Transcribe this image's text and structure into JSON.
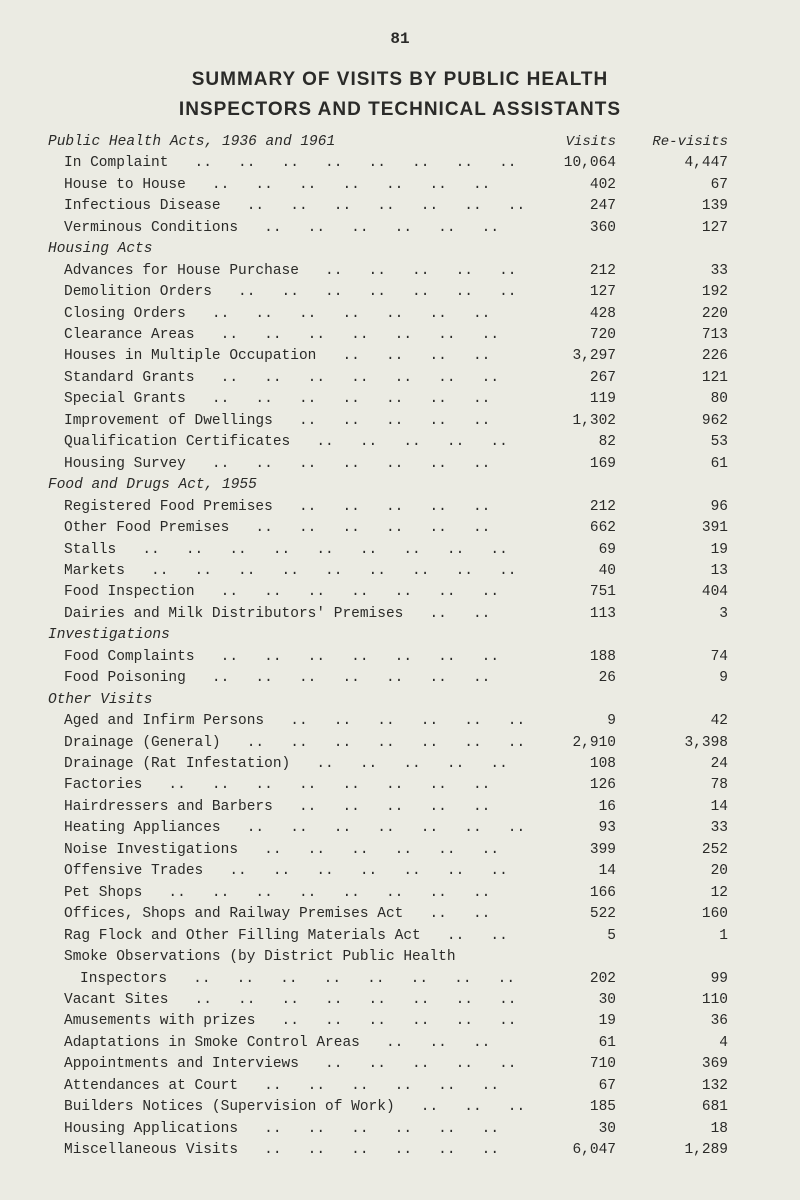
{
  "page_number": "81",
  "title_line1": "SUMMARY OF VISITS BY PUBLIC HEALTH",
  "title_line2": "INSPECTORS AND TECHNICAL ASSISTANTS",
  "col_headers": {
    "visits": "Visits",
    "revisits": "Re-visits"
  },
  "sections": [
    {
      "header": "Public Health Acts, 1936 and 1961",
      "is_header_row": true,
      "rows": [
        {
          "label": "In Complaint",
          "visits": "10,064",
          "revisits": "4,447"
        },
        {
          "label": "House to House",
          "visits": "402",
          "revisits": "67"
        },
        {
          "label": "Infectious Disease",
          "visits": "247",
          "revisits": "139"
        },
        {
          "label": "Verminous Conditions",
          "visits": "360",
          "revisits": "127"
        }
      ]
    },
    {
      "header": "Housing Acts",
      "rows": [
        {
          "label": "Advances for House Purchase",
          "visits": "212",
          "revisits": "33"
        },
        {
          "label": "Demolition Orders",
          "visits": "127",
          "revisits": "192"
        },
        {
          "label": "Closing Orders",
          "visits": "428",
          "revisits": "220"
        },
        {
          "label": "Clearance Areas",
          "visits": "720",
          "revisits": "713"
        },
        {
          "label": "Houses in Multiple Occupation",
          "visits": "3,297",
          "revisits": "226"
        },
        {
          "label": "Standard Grants",
          "visits": "267",
          "revisits": "121"
        },
        {
          "label": "Special Grants",
          "visits": "119",
          "revisits": "80"
        },
        {
          "label": "Improvement of Dwellings",
          "visits": "1,302",
          "revisits": "962"
        },
        {
          "label": "Qualification Certificates",
          "visits": "82",
          "revisits": "53"
        },
        {
          "label": "Housing Survey",
          "visits": "169",
          "revisits": "61"
        }
      ]
    },
    {
      "header": "Food and Drugs Act, 1955",
      "rows": [
        {
          "label": "Registered Food Premises",
          "visits": "212",
          "revisits": "96"
        },
        {
          "label": "Other Food Premises",
          "visits": "662",
          "revisits": "391"
        },
        {
          "label": "Stalls",
          "visits": "69",
          "revisits": "19"
        },
        {
          "label": "Markets",
          "visits": "40",
          "revisits": "13"
        },
        {
          "label": "Food Inspection",
          "visits": "751",
          "revisits": "404"
        },
        {
          "label": "Dairies and Milk Distributors' Premises",
          "visits": "113",
          "revisits": "3"
        }
      ]
    },
    {
      "header": "Investigations",
      "rows": [
        {
          "label": "Food Complaints",
          "visits": "188",
          "revisits": "74"
        },
        {
          "label": "Food Poisoning",
          "visits": "26",
          "revisits": "9"
        }
      ]
    },
    {
      "header": "Other Visits",
      "rows": [
        {
          "label": "Aged and Infirm Persons",
          "visits": "9",
          "revisits": "42"
        },
        {
          "label": "Drainage (General)",
          "visits": "2,910",
          "revisits": "3,398"
        },
        {
          "label": "Drainage (Rat Infestation)",
          "visits": "108",
          "revisits": "24"
        },
        {
          "label": "Factories",
          "visits": "126",
          "revisits": "78"
        },
        {
          "label": "Hairdressers and Barbers",
          "visits": "16",
          "revisits": "14"
        },
        {
          "label": "Heating Appliances",
          "visits": "93",
          "revisits": "33"
        },
        {
          "label": "Noise Investigations",
          "visits": "399",
          "revisits": "252"
        },
        {
          "label": "Offensive Trades",
          "visits": "14",
          "revisits": "20"
        },
        {
          "label": "Pet Shops",
          "visits": "166",
          "revisits": "12"
        },
        {
          "label": "Offices, Shops and Railway Premises Act",
          "visits": "522",
          "revisits": "160"
        },
        {
          "label": "Rag Flock and Other Filling Materials Act",
          "visits": "5",
          "revisits": "1"
        },
        {
          "label": "Smoke Observations (by District Public Health",
          "visits": "",
          "revisits": "",
          "no_leader": true
        },
        {
          "label": "Inspectors",
          "visits": "202",
          "revisits": "99",
          "indent": 2
        },
        {
          "label": "Vacant Sites",
          "visits": "30",
          "revisits": "110"
        },
        {
          "label": "Amusements with prizes",
          "visits": "19",
          "revisits": "36"
        },
        {
          "label": "Adaptations in Smoke Control Areas",
          "visits": "61",
          "revisits": "4"
        },
        {
          "label": "Appointments and Interviews",
          "visits": "710",
          "revisits": "369"
        },
        {
          "label": "Attendances at Court",
          "visits": "67",
          "revisits": "132"
        },
        {
          "label": "Builders Notices (Supervision of Work)",
          "visits": "185",
          "revisits": "681"
        },
        {
          "label": "Housing Applications",
          "visits": "30",
          "revisits": "18"
        },
        {
          "label": "Miscellaneous Visits",
          "visits": "6,047",
          "revisits": "1,289"
        }
      ]
    }
  ],
  "style": {
    "bg": "#ebebe3",
    "text": "#2a2a28",
    "font": "Courier New"
  }
}
